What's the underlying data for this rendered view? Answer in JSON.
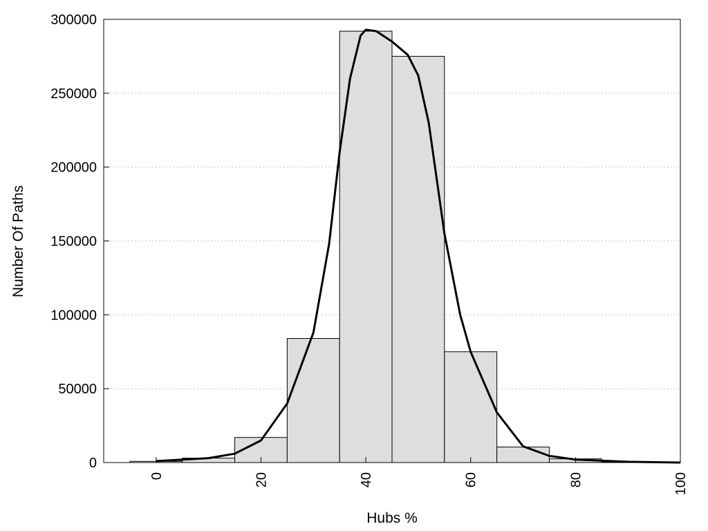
{
  "chart_data": {
    "type": "bar",
    "subtype": "histogram-with-density-curve",
    "xlabel": "Hubs %",
    "ylabel": "Number Of Paths",
    "xlim": [
      -10,
      100
    ],
    "ylim": [
      0,
      300000
    ],
    "x_ticks": [
      0,
      20,
      40,
      60,
      80,
      100
    ],
    "y_ticks": [
      0,
      50000,
      100000,
      150000,
      200000,
      250000,
      300000
    ],
    "grid": "horizontal dotted",
    "bin_width": 10,
    "bins": [
      {
        "center": 0,
        "value": 800
      },
      {
        "center": 10,
        "value": 3000
      },
      {
        "center": 20,
        "value": 17000
      },
      {
        "center": 30,
        "value": 84000
      },
      {
        "center": 40,
        "value": 292000
      },
      {
        "center": 50,
        "value": 275000
      },
      {
        "center": 60,
        "value": 75000
      },
      {
        "center": 70,
        "value": 10500
      },
      {
        "center": 80,
        "value": 2500
      },
      {
        "center": 90,
        "value": 500
      }
    ],
    "curve": {
      "x": [
        0,
        5,
        10,
        15,
        20,
        25,
        30,
        33,
        35,
        37,
        39,
        40,
        42,
        45,
        48,
        50,
        52,
        55,
        58,
        60,
        65,
        70,
        75,
        80,
        90,
        100
      ],
      "y": [
        1000,
        2000,
        3000,
        6000,
        15000,
        40000,
        88000,
        148000,
        210000,
        260000,
        289000,
        293000,
        292000,
        285000,
        276000,
        262000,
        230000,
        155000,
        100000,
        75000,
        34000,
        11000,
        4500,
        2000,
        500,
        0
      ]
    },
    "bar_fill": "#dedede",
    "line_color": "#000000"
  }
}
